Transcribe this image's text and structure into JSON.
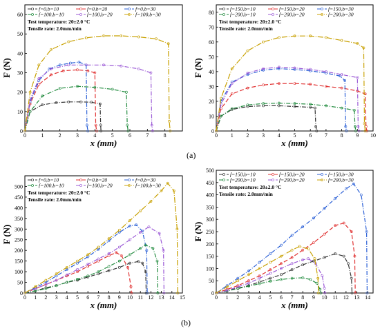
{
  "annotations": {
    "temp": "Test temperature: 20±2.0 °C",
    "rate": "Tensile rate: 2.0mm/min"
  },
  "panel_labels": [
    "(a)",
    "(b)"
  ],
  "chart_data": [
    {
      "type": "line",
      "xlabel": "x (mm)",
      "ylabel": "F (N)",
      "xlim": [
        0,
        9
      ],
      "ylim": [
        0,
        65
      ],
      "xticks": [
        0,
        1,
        2,
        3,
        4,
        5,
        6,
        7,
        8
      ],
      "yticks": [
        0,
        10,
        20,
        30,
        40,
        50,
        60
      ],
      "legend": "top-left",
      "legend_cols": 3,
      "series": [
        {
          "name": "f=0,b=10",
          "color": "#333333",
          "x": [
            0,
            0.3,
            1,
            1.8,
            2.5,
            3.2,
            3.8,
            4.3,
            4.33,
            4.35
          ],
          "y": [
            0,
            10,
            13.5,
            14.6,
            15,
            15,
            14.8,
            14,
            3,
            0
          ]
        },
        {
          "name": "f=0,b=20",
          "color": "#e03030",
          "x": [
            0,
            0.3,
            0.8,
            1.5,
            2.2,
            3,
            3.6,
            4.0,
            4.05,
            4.1
          ],
          "y": [
            0,
            14,
            24,
            29,
            31,
            31.5,
            31,
            30,
            3,
            0
          ]
        },
        {
          "name": "f=0,b=30",
          "color": "#2a5fd6",
          "x": [
            0,
            0.3,
            0.8,
            1.4,
            2,
            2.6,
            3.1,
            3.5,
            3.55,
            3.6
          ],
          "y": [
            0,
            15,
            26,
            32,
            34,
            35,
            35.5,
            34,
            3,
            0
          ]
        },
        {
          "name": "f=100,b=10",
          "color": "#1f8a3c",
          "x": [
            0,
            0.3,
            1,
            2,
            3,
            4,
            5,
            5.8,
            5.85,
            5.9
          ],
          "y": [
            0,
            10,
            18,
            22,
            23,
            22.5,
            21.5,
            20,
            3,
            0
          ]
        },
        {
          "name": "f=100,b=20",
          "color": "#9b59d6",
          "x": [
            0,
            0.3,
            0.8,
            1.5,
            2.5,
            3.5,
            4.5,
            5.5,
            6.5,
            7.2,
            7.25,
            7.3
          ],
          "y": [
            0,
            16,
            27,
            32,
            34,
            34,
            34,
            33.5,
            32,
            30,
            3,
            0
          ]
        },
        {
          "name": "f=100,b=30",
          "color": "#c8a000",
          "x": [
            0,
            0.3,
            0.8,
            1.5,
            2.5,
            3.5,
            4.5,
            5.5,
            6.5,
            7.5,
            8.2,
            8.25,
            8.3
          ],
          "y": [
            0,
            20,
            34,
            42,
            46,
            48,
            49,
            49,
            48.5,
            47.5,
            45,
            5,
            0
          ]
        }
      ]
    },
    {
      "type": "line",
      "xlabel": "x (mm)",
      "ylabel": "F (N)",
      "xlim": [
        0,
        10
      ],
      "ylim": [
        0,
        85
      ],
      "xticks": [
        0,
        1,
        2,
        3,
        4,
        5,
        6,
        7,
        8,
        9,
        10
      ],
      "yticks": [
        0,
        10,
        20,
        30,
        40,
        50,
        60,
        70,
        80
      ],
      "legend": "top-left",
      "legend_cols": 3,
      "series": [
        {
          "name": "f=150,b=10",
          "color": "#333333",
          "x": [
            0,
            0.3,
            1,
            2,
            3,
            4,
            5,
            6,
            6.3,
            6.35,
            6.4
          ],
          "y": [
            0,
            10,
            14.5,
            16.5,
            17,
            17,
            16.5,
            16,
            15.5,
            3,
            0
          ]
        },
        {
          "name": "f=150,b=20",
          "color": "#e03030",
          "x": [
            0,
            0.3,
            1,
            2,
            3,
            4,
            5,
            6,
            7,
            8,
            9,
            9.5,
            9.55,
            9.6
          ],
          "y": [
            0,
            15,
            25,
            29,
            31,
            32,
            32,
            31.5,
            30,
            29,
            27,
            25,
            3,
            0
          ]
        },
        {
          "name": "f=150,b=30",
          "color": "#2a5fd6",
          "x": [
            0,
            0.3,
            1,
            2,
            3,
            4,
            5,
            6,
            7,
            7.9,
            8.2,
            8.25,
            8.3
          ],
          "y": [
            0,
            20,
            33,
            38,
            41,
            42,
            41.5,
            40.5,
            39,
            37,
            34,
            3,
            0
          ]
        },
        {
          "name": "f=200,b=10",
          "color": "#1f8a3c",
          "x": [
            0,
            0.3,
            1,
            2,
            3,
            4,
            5,
            6,
            7,
            8,
            8.8,
            8.85,
            8.9
          ],
          "y": [
            0,
            10,
            15,
            17.5,
            18.5,
            18.8,
            18.5,
            18,
            17,
            15.5,
            14,
            3,
            0
          ]
        },
        {
          "name": "f=200,b=20",
          "color": "#9b59d6",
          "x": [
            0,
            0.3,
            1,
            2,
            3,
            4,
            5,
            6,
            7,
            8,
            9,
            9.05,
            9.1
          ],
          "y": [
            0,
            18,
            32,
            39,
            42,
            43,
            42.5,
            41.5,
            40,
            38,
            36,
            3,
            0
          ]
        },
        {
          "name": "f=200,b=30",
          "color": "#c8a000",
          "x": [
            0,
            0.3,
            1,
            2,
            3,
            4,
            5,
            6,
            7,
            8,
            9,
            9.4,
            9.45,
            9.5
          ],
          "y": [
            0,
            22,
            42,
            54,
            60,
            63,
            64,
            64,
            63,
            61,
            59,
            56,
            5,
            0
          ]
        }
      ]
    },
    {
      "type": "line",
      "xlabel": "x (mm)",
      "ylabel": "F (N)",
      "xlim": [
        0,
        15
      ],
      "ylim": [
        0,
        550
      ],
      "xticks": [
        0,
        1,
        2,
        3,
        4,
        5,
        6,
        7,
        8,
        9,
        10,
        11,
        12,
        13,
        14,
        15
      ],
      "yticks": [
        0,
        50,
        100,
        150,
        200,
        250,
        300,
        350,
        400,
        450,
        500
      ],
      "legend": "top-left",
      "legend_cols": 3,
      "series": [
        {
          "name": "f=0,b=10",
          "color": "#333333",
          "x": [
            0,
            1,
            2,
            3,
            4,
            5,
            6,
            7,
            8,
            9,
            10,
            10.8,
            11.2,
            11.5,
            11.55
          ],
          "y": [
            0,
            10,
            25,
            35,
            50,
            60,
            75,
            90,
            105,
            120,
            140,
            148,
            140,
            100,
            0
          ]
        },
        {
          "name": "f=0,b=20",
          "color": "#e03030",
          "x": [
            0,
            1,
            2,
            3,
            4,
            5,
            6,
            7,
            8,
            8.7,
            9.2,
            9.8,
            10.1,
            10.15
          ],
          "y": [
            0,
            20,
            40,
            60,
            80,
            100,
            125,
            150,
            175,
            190,
            175,
            120,
            30,
            0
          ]
        },
        {
          "name": "f=0,b=30",
          "color": "#2a5fd6",
          "x": [
            0,
            1,
            2,
            3,
            4,
            5,
            6,
            7,
            8,
            9,
            10,
            10.6,
            11.2,
            11.6,
            11.65
          ],
          "y": [
            0,
            25,
            50,
            80,
            110,
            140,
            170,
            205,
            245,
            285,
            315,
            320,
            290,
            200,
            0
          ]
        },
        {
          "name": "f=100,b=10",
          "color": "#1f8a3c",
          "x": [
            0,
            1,
            2,
            3,
            4,
            5,
            6,
            7,
            8,
            9,
            10,
            11,
            11.5,
            12.2,
            12.6,
            12.65
          ],
          "y": [
            0,
            10,
            20,
            35,
            50,
            65,
            80,
            100,
            125,
            150,
            180,
            210,
            225,
            210,
            150,
            0
          ]
        },
        {
          "name": "f=100,b=20",
          "color": "#9b59d6",
          "x": [
            0,
            1,
            2,
            3,
            4,
            5,
            6,
            7,
            8,
            9,
            10,
            11,
            11.8,
            12.8,
            13.2,
            13.25
          ],
          "y": [
            0,
            20,
            40,
            60,
            85,
            110,
            135,
            160,
            185,
            215,
            250,
            285,
            310,
            280,
            200,
            0
          ]
        },
        {
          "name": "f=100,b=30",
          "color": "#c8a000",
          "x": [
            0,
            1,
            2,
            3,
            4,
            5,
            6,
            7,
            8,
            9,
            10,
            11,
            12,
            13,
            13.6,
            14.2,
            14.5,
            14.55
          ],
          "y": [
            0,
            30,
            60,
            90,
            120,
            150,
            180,
            215,
            255,
            295,
            340,
            385,
            430,
            480,
            515,
            480,
            300,
            0
          ]
        }
      ]
    },
    {
      "type": "line",
      "xlabel": "x (mm)",
      "ylabel": "F (N)",
      "xlim": [
        0,
        14.5
      ],
      "ylim": [
        0,
        500
      ],
      "xticks": [
        0,
        1,
        2,
        3,
        4,
        5,
        6,
        7,
        8,
        9,
        10,
        11,
        12,
        13,
        14
      ],
      "yticks": [
        0,
        50,
        100,
        150,
        200,
        250,
        300,
        350,
        400,
        450,
        500
      ],
      "legend": "top-left",
      "legend_cols": 3,
      "series": [
        {
          "name": "f=150,b=10",
          "color": "#333333",
          "x": [
            0,
            1,
            2,
            3,
            4,
            5,
            6,
            7,
            8,
            9,
            10,
            11,
            11.8,
            12.2,
            12.5,
            12.55
          ],
          "y": [
            0,
            10,
            20,
            30,
            45,
            60,
            75,
            95,
            115,
            130,
            145,
            160,
            150,
            120,
            60,
            0
          ]
        },
        {
          "name": "f=150,b=20",
          "color": "#e03030",
          "x": [
            0,
            1,
            2,
            3,
            4,
            5,
            6,
            7,
            8,
            9,
            10,
            11,
            11.8,
            12.5,
            12.8,
            12.85
          ],
          "y": [
            0,
            15,
            30,
            50,
            70,
            95,
            120,
            145,
            175,
            205,
            240,
            275,
            285,
            250,
            150,
            0
          ]
        },
        {
          "name": "f=150,b=30",
          "color": "#2a5fd6",
          "x": [
            0,
            1,
            2,
            3,
            4,
            5,
            6,
            7,
            8,
            9,
            10,
            11,
            12,
            12.7,
            13.4,
            13.9,
            13.95
          ],
          "y": [
            0,
            30,
            60,
            90,
            125,
            160,
            195,
            235,
            270,
            305,
            345,
            385,
            425,
            445,
            400,
            250,
            0
          ]
        },
        {
          "name": "f=200,b=10",
          "color": "#1f8a3c",
          "x": [
            0,
            1,
            2,
            3,
            4,
            5,
            6,
            7,
            8,
            8.7,
            9.3,
            9.6,
            9.65
          ],
          "y": [
            0,
            8,
            18,
            28,
            38,
            48,
            55,
            60,
            62,
            55,
            40,
            15,
            0
          ]
        },
        {
          "name": "f=200,b=20",
          "color": "#9b59d6",
          "x": [
            0,
            1,
            2,
            3,
            4,
            5,
            6,
            7,
            8,
            8.5,
            9.2,
            9.8,
            10,
            10.05
          ],
          "y": [
            0,
            10,
            25,
            40,
            60,
            80,
            100,
            120,
            135,
            140,
            120,
            70,
            20,
            0
          ]
        },
        {
          "name": "f=200,b=30",
          "color": "#c8a000",
          "x": [
            0,
            1,
            2,
            3,
            4,
            5,
            6,
            7,
            7.7,
            8.5,
            9.1,
            9.4,
            9.45
          ],
          "y": [
            0,
            25,
            50,
            75,
            100,
            125,
            150,
            175,
            190,
            180,
            140,
            60,
            0
          ]
        }
      ]
    }
  ]
}
